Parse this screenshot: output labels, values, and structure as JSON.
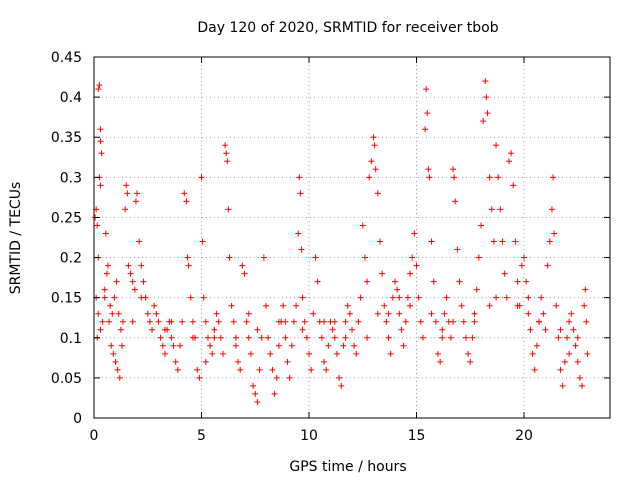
{
  "chart_data": {
    "type": "scatter",
    "title": "Day 120 of 2020, SRMTID for receiver tbob",
    "xlabel": "GPS time / hours",
    "ylabel": "SRMTID / TECUs",
    "xlim": [
      0,
      24
    ],
    "ylim": [
      0,
      0.45
    ],
    "xticks": [
      0,
      5,
      10,
      15,
      20
    ],
    "yticks": [
      0,
      0.05,
      0.1,
      0.15,
      0.2,
      0.25,
      0.3,
      0.35,
      0.4,
      0.45
    ],
    "xtick_labels": [
      "0",
      "5",
      "10",
      "15",
      "20"
    ],
    "ytick_labels": [
      "0",
      "0.05",
      "0.1",
      "0.15",
      "0.2",
      "0.25",
      "0.3",
      "0.35",
      "0.4",
      "0.45"
    ],
    "grid": true,
    "marker": "+",
    "color": "#ff0000",
    "series": [
      {
        "name": "SRMTID",
        "points": [
          [
            0.05,
            0.25
          ],
          [
            0.1,
            0.26
          ],
          [
            0.15,
            0.24
          ],
          [
            0.2,
            0.41
          ],
          [
            0.25,
            0.415
          ],
          [
            0.3,
            0.36
          ],
          [
            0.3,
            0.345
          ],
          [
            0.35,
            0.33
          ],
          [
            0.25,
            0.3
          ],
          [
            0.3,
            0.29
          ],
          [
            0.2,
            0.2
          ],
          [
            0.1,
            0.15
          ],
          [
            0.2,
            0.13
          ],
          [
            0.15,
            0.1
          ],
          [
            0.3,
            0.11
          ],
          [
            0.4,
            0.12
          ],
          [
            0.5,
            0.15
          ],
          [
            0.6,
            0.18
          ],
          [
            0.7,
            0.12
          ],
          [
            0.8,
            0.09
          ],
          [
            0.9,
            0.08
          ],
          [
            1.0,
            0.07
          ],
          [
            1.1,
            0.06
          ],
          [
            1.2,
            0.05
          ],
          [
            0.55,
            0.23
          ],
          [
            0.65,
            0.19
          ],
          [
            0.75,
            0.14
          ],
          [
            0.85,
            0.13
          ],
          [
            0.95,
            0.15
          ],
          [
            1.05,
            0.17
          ],
          [
            1.15,
            0.13
          ],
          [
            1.25,
            0.11
          ],
          [
            1.35,
            0.12
          ],
          [
            1.45,
            0.26
          ],
          [
            1.5,
            0.29
          ],
          [
            1.55,
            0.28
          ],
          [
            1.6,
            0.19
          ],
          [
            1.7,
            0.18
          ],
          [
            1.8,
            0.17
          ],
          [
            1.9,
            0.16
          ],
          [
            1.95,
            0.27
          ],
          [
            2.0,
            0.28
          ],
          [
            2.1,
            0.22
          ],
          [
            2.2,
            0.19
          ],
          [
            2.3,
            0.17
          ],
          [
            2.4,
            0.15
          ],
          [
            2.5,
            0.13
          ],
          [
            2.6,
            0.12
          ],
          [
            2.7,
            0.11
          ],
          [
            2.8,
            0.14
          ],
          [
            2.9,
            0.13
          ],
          [
            3.0,
            0.12
          ],
          [
            3.1,
            0.1
          ],
          [
            3.2,
            0.09
          ],
          [
            3.3,
            0.08
          ],
          [
            3.4,
            0.11
          ],
          [
            3.5,
            0.12
          ],
          [
            3.6,
            0.1
          ],
          [
            3.7,
            0.09
          ],
          [
            3.8,
            0.07
          ],
          [
            3.9,
            0.06
          ],
          [
            4.0,
            0.09
          ],
          [
            4.1,
            0.12
          ],
          [
            4.2,
            0.28
          ],
          [
            4.3,
            0.27
          ],
          [
            4.35,
            0.2
          ],
          [
            4.4,
            0.19
          ],
          [
            4.5,
            0.15
          ],
          [
            4.6,
            0.12
          ],
          [
            4.7,
            0.1
          ],
          [
            4.8,
            0.06
          ],
          [
            4.9,
            0.05
          ],
          [
            5.0,
            0.3
          ],
          [
            5.05,
            0.22
          ],
          [
            5.1,
            0.15
          ],
          [
            5.2,
            0.12
          ],
          [
            5.3,
            0.1
          ],
          [
            5.4,
            0.09
          ],
          [
            5.5,
            0.08
          ],
          [
            5.6,
            0.11
          ],
          [
            5.7,
            0.13
          ],
          [
            5.8,
            0.12
          ],
          [
            5.9,
            0.1
          ],
          [
            6.0,
            0.08
          ],
          [
            6.1,
            0.34
          ],
          [
            6.15,
            0.33
          ],
          [
            6.2,
            0.32
          ],
          [
            6.25,
            0.26
          ],
          [
            6.3,
            0.2
          ],
          [
            6.4,
            0.14
          ],
          [
            6.5,
            0.12
          ],
          [
            6.6,
            0.1
          ],
          [
            6.7,
            0.07
          ],
          [
            6.8,
            0.06
          ],
          [
            6.9,
            0.19
          ],
          [
            7.0,
            0.18
          ],
          [
            7.1,
            0.12
          ],
          [
            7.2,
            0.1
          ],
          [
            7.3,
            0.08
          ],
          [
            7.4,
            0.04
          ],
          [
            7.5,
            0.03
          ],
          [
            7.6,
            0.02
          ],
          [
            7.7,
            0.06
          ],
          [
            7.8,
            0.1
          ],
          [
            7.9,
            0.2
          ],
          [
            8.0,
            0.14
          ],
          [
            8.1,
            0.1
          ],
          [
            8.2,
            0.08
          ],
          [
            8.3,
            0.06
          ],
          [
            8.4,
            0.03
          ],
          [
            8.5,
            0.05
          ],
          [
            8.6,
            0.09
          ],
          [
            8.7,
            0.12
          ],
          [
            8.8,
            0.14
          ],
          [
            8.9,
            0.1
          ],
          [
            9.0,
            0.07
          ],
          [
            9.1,
            0.05
          ],
          [
            9.2,
            0.09
          ],
          [
            9.3,
            0.12
          ],
          [
            9.4,
            0.14
          ],
          [
            9.5,
            0.23
          ],
          [
            9.55,
            0.3
          ],
          [
            9.6,
            0.28
          ],
          [
            9.65,
            0.21
          ],
          [
            9.7,
            0.15
          ],
          [
            9.8,
            0.12
          ],
          [
            9.9,
            0.1
          ],
          [
            10.0,
            0.08
          ],
          [
            10.1,
            0.06
          ],
          [
            10.2,
            0.13
          ],
          [
            10.3,
            0.2
          ],
          [
            10.4,
            0.17
          ],
          [
            10.5,
            0.12
          ],
          [
            10.6,
            0.1
          ],
          [
            10.7,
            0.07
          ],
          [
            10.8,
            0.06
          ],
          [
            10.9,
            0.09
          ],
          [
            11.0,
            0.12
          ],
          [
            11.1,
            0.11
          ],
          [
            11.2,
            0.1
          ],
          [
            11.3,
            0.08
          ],
          [
            11.4,
            0.05
          ],
          [
            11.5,
            0.04
          ],
          [
            11.6,
            0.09
          ],
          [
            11.7,
            0.12
          ],
          [
            11.8,
            0.14
          ],
          [
            11.9,
            0.13
          ],
          [
            12.0,
            0.11
          ],
          [
            12.1,
            0.09
          ],
          [
            12.2,
            0.08
          ],
          [
            12.3,
            0.12
          ],
          [
            12.4,
            0.15
          ],
          [
            12.5,
            0.24
          ],
          [
            12.6,
            0.2
          ],
          [
            12.7,
            0.17
          ],
          [
            12.8,
            0.3
          ],
          [
            12.9,
            0.32
          ],
          [
            13.0,
            0.35
          ],
          [
            13.05,
            0.34
          ],
          [
            13.1,
            0.31
          ],
          [
            13.2,
            0.28
          ],
          [
            13.3,
            0.22
          ],
          [
            13.4,
            0.18
          ],
          [
            13.5,
            0.14
          ],
          [
            13.6,
            0.12
          ],
          [
            13.7,
            0.1
          ],
          [
            13.8,
            0.08
          ],
          [
            13.9,
            0.15
          ],
          [
            14.0,
            0.17
          ],
          [
            14.1,
            0.16
          ],
          [
            14.2,
            0.13
          ],
          [
            14.3,
            0.11
          ],
          [
            14.4,
            0.09
          ],
          [
            14.5,
            0.12
          ],
          [
            14.6,
            0.15
          ],
          [
            14.7,
            0.18
          ],
          [
            14.8,
            0.2
          ],
          [
            14.9,
            0.23
          ],
          [
            15.0,
            0.19
          ],
          [
            15.1,
            0.15
          ],
          [
            15.2,
            0.12
          ],
          [
            15.3,
            0.1
          ],
          [
            15.4,
            0.36
          ],
          [
            15.45,
            0.41
          ],
          [
            15.5,
            0.38
          ],
          [
            15.55,
            0.31
          ],
          [
            15.6,
            0.3
          ],
          [
            15.7,
            0.22
          ],
          [
            15.8,
            0.17
          ],
          [
            15.9,
            0.12
          ],
          [
            16.0,
            0.08
          ],
          [
            16.1,
            0.07
          ],
          [
            16.2,
            0.1
          ],
          [
            16.3,
            0.13
          ],
          [
            16.4,
            0.15
          ],
          [
            16.5,
            0.12
          ],
          [
            16.6,
            0.1
          ],
          [
            16.7,
            0.31
          ],
          [
            16.75,
            0.3
          ],
          [
            16.8,
            0.27
          ],
          [
            16.9,
            0.21
          ],
          [
            17.0,
            0.17
          ],
          [
            17.1,
            0.14
          ],
          [
            17.2,
            0.12
          ],
          [
            17.3,
            0.1
          ],
          [
            17.4,
            0.08
          ],
          [
            17.5,
            0.07
          ],
          [
            17.6,
            0.1
          ],
          [
            17.7,
            0.13
          ],
          [
            17.8,
            0.16
          ],
          [
            17.9,
            0.2
          ],
          [
            18.0,
            0.24
          ],
          [
            18.1,
            0.37
          ],
          [
            18.2,
            0.42
          ],
          [
            18.25,
            0.4
          ],
          [
            18.3,
            0.38
          ],
          [
            18.4,
            0.3
          ],
          [
            18.5,
            0.26
          ],
          [
            18.6,
            0.22
          ],
          [
            18.7,
            0.34
          ],
          [
            18.8,
            0.3
          ],
          [
            18.9,
            0.26
          ],
          [
            19.0,
            0.22
          ],
          [
            19.1,
            0.18
          ],
          [
            19.2,
            0.15
          ],
          [
            19.3,
            0.32
          ],
          [
            19.4,
            0.33
          ],
          [
            19.5,
            0.29
          ],
          [
            19.6,
            0.22
          ],
          [
            19.7,
            0.17
          ],
          [
            19.8,
            0.14
          ],
          [
            19.9,
            0.19
          ],
          [
            20.0,
            0.2
          ],
          [
            20.1,
            0.17
          ],
          [
            20.2,
            0.13
          ],
          [
            20.3,
            0.11
          ],
          [
            20.4,
            0.08
          ],
          [
            20.5,
            0.06
          ],
          [
            20.6,
            0.09
          ],
          [
            20.7,
            0.12
          ],
          [
            20.8,
            0.15
          ],
          [
            20.9,
            0.13
          ],
          [
            21.0,
            0.11
          ],
          [
            21.1,
            0.19
          ],
          [
            21.2,
            0.22
          ],
          [
            21.3,
            0.26
          ],
          [
            21.35,
            0.3
          ],
          [
            21.4,
            0.23
          ],
          [
            21.5,
            0.14
          ],
          [
            21.6,
            0.1
          ],
          [
            21.7,
            0.06
          ],
          [
            21.8,
            0.04
          ],
          [
            21.9,
            0.07
          ],
          [
            22.0,
            0.1
          ],
          [
            22.1,
            0.12
          ],
          [
            22.2,
            0.13
          ],
          [
            22.3,
            0.11
          ],
          [
            22.4,
            0.09
          ],
          [
            22.5,
            0.07
          ],
          [
            22.6,
            0.05
          ],
          [
            22.7,
            0.04
          ],
          [
            22.8,
            0.14
          ],
          [
            22.85,
            0.16
          ],
          [
            22.9,
            0.12
          ],
          [
            22.95,
            0.08
          ],
          [
            0.5,
            0.16
          ],
          [
            1.3,
            0.09
          ],
          [
            2.2,
            0.15
          ],
          [
            3.3,
            0.11
          ],
          [
            4.6,
            0.1
          ],
          [
            5.6,
            0.1
          ],
          [
            6.6,
            0.09
          ],
          [
            7.6,
            0.11
          ],
          [
            8.6,
            0.12
          ],
          [
            9.7,
            0.11
          ],
          [
            10.7,
            0.12
          ],
          [
            11.7,
            0.1
          ],
          [
            12.7,
            0.1
          ],
          [
            13.7,
            0.13
          ],
          [
            14.7,
            0.14
          ],
          [
            15.7,
            0.13
          ],
          [
            16.7,
            0.12
          ],
          [
            17.7,
            0.12
          ],
          [
            18.7,
            0.15
          ],
          [
            19.7,
            0.14
          ],
          [
            20.7,
            0.12
          ],
          [
            21.7,
            0.11
          ],
          [
            22.5,
            0.1
          ],
          [
            1.8,
            0.12
          ],
          [
            3.6,
            0.12
          ],
          [
            5.2,
            0.07
          ],
          [
            7.2,
            0.13
          ],
          [
            8.9,
            0.12
          ],
          [
            11.2,
            0.12
          ],
          [
            13.2,
            0.13
          ],
          [
            14.2,
            0.15
          ],
          [
            16.2,
            0.11
          ],
          [
            18.4,
            0.14
          ],
          [
            20.2,
            0.15
          ],
          [
            22.1,
            0.08
          ]
        ]
      }
    ]
  }
}
